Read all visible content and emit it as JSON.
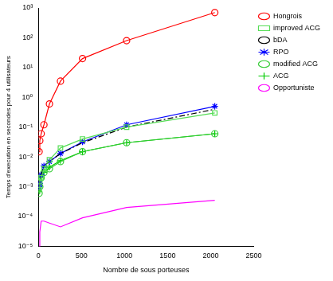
{
  "chart_data": {
    "type": "line",
    "x_label": "Nombre de sous porteuses",
    "y_label": "Temps d'execution en secondes pour 4 utilisateurs",
    "x": [
      8,
      16,
      32,
      64,
      128,
      256,
      512,
      1024,
      2048
    ],
    "series": [
      {
        "name": "Hongrois",
        "color": "#ff0000",
        "marker": "circle",
        "line_style": "solid",
        "values": [
          0.015,
          0.035,
          0.06,
          0.12,
          0.6,
          3.5,
          20,
          80,
          700
        ]
      },
      {
        "name": "improved ACG",
        "color": "#55dd55",
        "marker": "square",
        "line_style": "solid",
        "values": [
          0.0008,
          0.0015,
          0.002,
          0.004,
          0.008,
          0.02,
          0.04,
          0.1,
          0.3
        ]
      },
      {
        "name": "bDA",
        "color": "#000000",
        "marker": "none",
        "line_style": "dashdot",
        "values": [
          0.001,
          0.0015,
          0.0025,
          0.005,
          0.007,
          0.013,
          0.03,
          0.1,
          0.4
        ]
      },
      {
        "name": "RPO",
        "color": "#0000ff",
        "marker": "star",
        "line_style": "solid",
        "values": [
          0.001,
          0.0013,
          0.0025,
          0.005,
          0.007,
          0.013,
          0.032,
          0.12,
          0.5
        ]
      },
      {
        "name": "modified ACG",
        "color": "#33cc33",
        "marker": "circle",
        "line_style": "solid",
        "values": [
          0.0006,
          0.001,
          0.002,
          0.003,
          0.004,
          0.007,
          0.015,
          0.03,
          0.06
        ]
      },
      {
        "name": "ACG",
        "color": "#00cc00",
        "marker": "cross",
        "line_style": "solid",
        "values": [
          0.0007,
          0.0011,
          0.002,
          0.003,
          0.0045,
          0.0075,
          0.015,
          0.03,
          0.06
        ]
      },
      {
        "name": "Opportuniste",
        "color": "#ff00ff",
        "marker": "none",
        "line_style": "solid",
        "values": [
          1e-05,
          3e-05,
          7e-05,
          7e-05,
          6e-05,
          4.5e-05,
          9e-05,
          0.0002,
          0.00035
        ]
      }
    ],
    "xlim": [
      0,
      2500
    ],
    "xticks": [
      0,
      500,
      1000,
      1500,
      2000,
      2500
    ],
    "ylim": [
      1e-05,
      1000
    ],
    "yticks": [
      {
        "value": 1e-05,
        "label": "10⁻⁵"
      },
      {
        "value": 0.0001,
        "label": "10⁻⁴"
      },
      {
        "value": 0.001,
        "label": "10⁻³"
      },
      {
        "value": 0.01,
        "label": "10⁻²"
      },
      {
        "value": 0.1,
        "label": "10⁻¹"
      },
      {
        "value": 1,
        "label": "10⁰"
      },
      {
        "value": 10,
        "label": "10¹"
      },
      {
        "value": 100,
        "label": "10²"
      },
      {
        "value": 1000,
        "label": "10³"
      }
    ],
    "log": "y",
    "grid": false,
    "legend": "upper right"
  }
}
